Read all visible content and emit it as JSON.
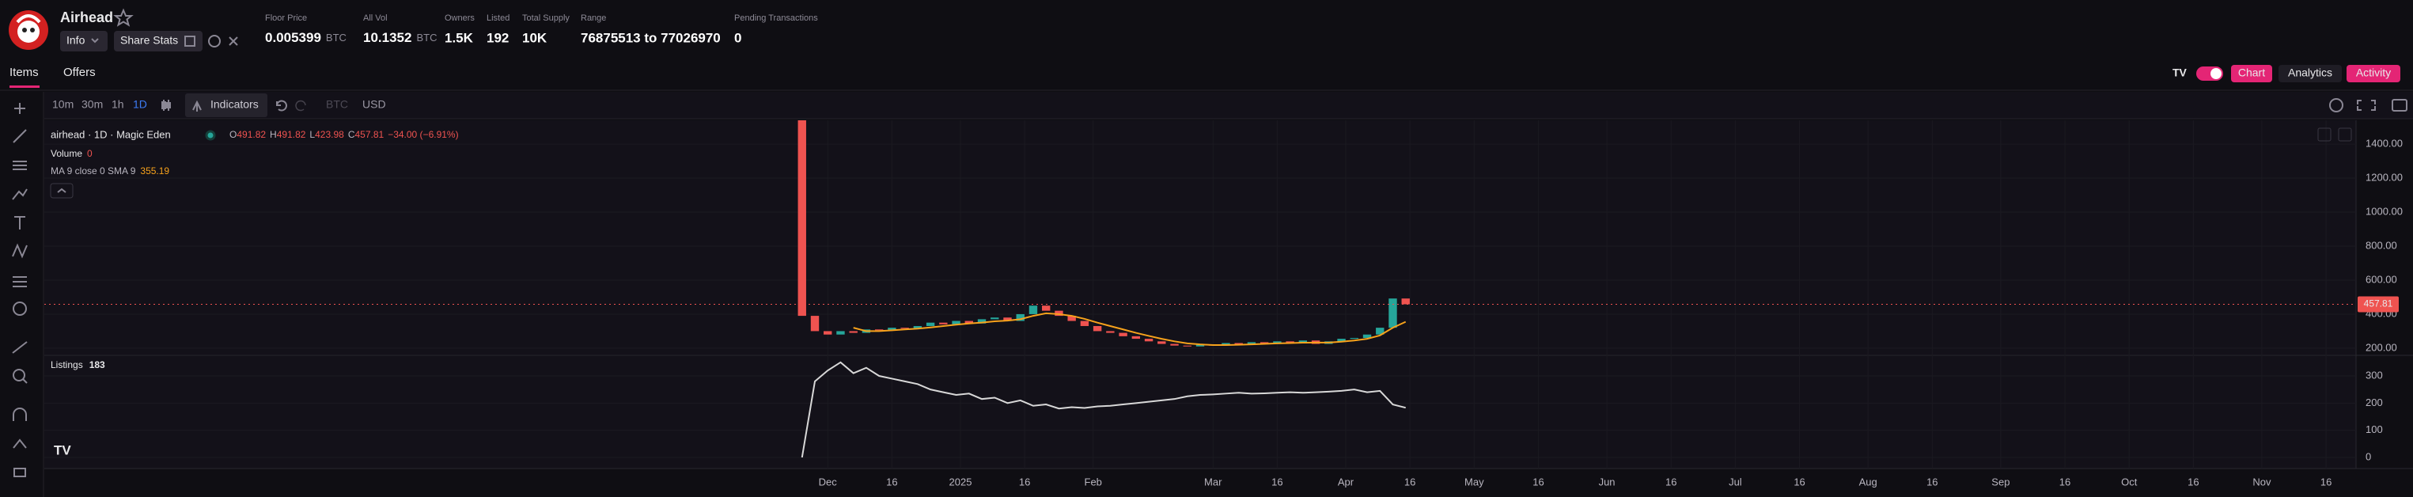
{
  "header": {
    "name": "Airhead",
    "info_button": "Info",
    "share_button": "Share Stats",
    "stats": [
      {
        "label": "Floor Price",
        "value": "0.005399",
        "unit": "BTC"
      },
      {
        "label": "All Vol",
        "value": "10.1352",
        "unit": "BTC"
      },
      {
        "label": "Owners",
        "value": "1.5K"
      },
      {
        "label": "Listed",
        "value": "192"
      },
      {
        "label": "Total Supply",
        "value": "10K"
      },
      {
        "label": "Range",
        "value": "76875513 to 77026970"
      },
      {
        "label": "Pending Transactions",
        "value": "0"
      }
    ]
  },
  "tabs": [
    "Items",
    "Offers"
  ],
  "view_buttons": [
    "Chart",
    "Analytics",
    "Activity"
  ],
  "toolbar": {
    "intervals": [
      "10m",
      "30m",
      "1h",
      "1D"
    ],
    "indicators": "Indicators",
    "currencies": [
      "BTC",
      "USD"
    ]
  },
  "chart": {
    "title": "airhead · 1D · Magic Eden",
    "ohlc": [
      {
        "key": "O",
        "value": "491.82"
      },
      {
        "key": "H",
        "value": "491.82"
      },
      {
        "key": "L",
        "value": "423.98"
      },
      {
        "key": "C",
        "value": "457.81"
      }
    ],
    "change": "−34.00 (−6.91%)",
    "volume": {
      "label": "Volume",
      "value": "0"
    },
    "ma": {
      "label": "MA 9 close 0 SMA 9",
      "value": "355.19"
    },
    "x": [
      -6,
      -3,
      0,
      3,
      6,
      9,
      12,
      15,
      18,
      21,
      24,
      27,
      30,
      33,
      36,
      39,
      42,
      45,
      48,
      51,
      54,
      57,
      60,
      63,
      66,
      69,
      72,
      75,
      78,
      81,
      84,
      87,
      90,
      93,
      96,
      99,
      102,
      105,
      108,
      111,
      114,
      117,
      120,
      123,
      126,
      129,
      132,
      135
    ],
    "xlim": [
      -183,
      357
    ],
    "xticks": [
      {
        "value": 0,
        "label": "Dec"
      },
      {
        "value": 15,
        "label": "16"
      },
      {
        "value": 31,
        "label": "2025"
      },
      {
        "value": 46,
        "label": "16"
      },
      {
        "value": 62,
        "label": "Feb"
      },
      {
        "value": 90,
        "label": "Mar"
      },
      {
        "value": 105,
        "label": "16"
      },
      {
        "value": 121,
        "label": "Apr"
      },
      {
        "value": 136,
        "label": "16"
      },
      {
        "value": 151,
        "label": "May"
      },
      {
        "value": 166,
        "label": "16"
      },
      {
        "value": 182,
        "label": "Jun"
      },
      {
        "value": 197,
        "label": "16"
      },
      {
        "value": 212,
        "label": "Jul"
      },
      {
        "value": 227,
        "label": "16"
      },
      {
        "value": 243,
        "label": "Aug"
      },
      {
        "value": 258,
        "label": "16"
      },
      {
        "value": 274,
        "label": "Sep"
      },
      {
        "value": 289,
        "label": "16"
      },
      {
        "value": 304,
        "label": "Oct"
      },
      {
        "value": 319,
        "label": "16"
      },
      {
        "value": 335,
        "label": "Nov"
      },
      {
        "value": 350,
        "label": "16"
      }
    ],
    "price": {
      "ylim": [
        167,
        1540
      ],
      "yticks": [
        {
          "value": 200,
          "label": "200.00"
        },
        {
          "value": 400,
          "label": "400.00"
        },
        {
          "value": 600,
          "label": "600.00"
        },
        {
          "value": 800,
          "label": "800.00"
        },
        {
          "value": 1000,
          "label": "1000.00"
        },
        {
          "value": 1200,
          "label": "1200.00"
        },
        {
          "value": 1400,
          "label": "1400.00"
        }
      ],
      "up_color": "#26a69a",
      "down_color": "#ef5350",
      "ma_color": "#f7a21b",
      "open": [
        1540,
        390,
        300,
        280,
        300,
        290,
        310,
        305,
        320,
        315,
        330,
        350,
        340,
        360,
        345,
        370,
        380,
        360,
        400,
        450,
        420,
        390,
        360,
        330,
        300,
        290,
        270,
        255,
        240,
        225,
        215,
        210,
        220,
        215,
        230,
        220,
        235,
        225,
        240,
        230,
        245,
        225,
        240,
        255,
        260,
        280,
        320,
        492
      ],
      "close": [
        390,
        300,
        280,
        300,
        290,
        310,
        305,
        320,
        315,
        330,
        350,
        340,
        360,
        345,
        370,
        380,
        360,
        400,
        450,
        420,
        390,
        360,
        330,
        300,
        290,
        270,
        255,
        240,
        225,
        215,
        210,
        220,
        215,
        230,
        220,
        235,
        225,
        240,
        230,
        245,
        225,
        240,
        255,
        260,
        280,
        320,
        492,
        458
      ],
      "ma_values": [
        null,
        null,
        null,
        null,
        320,
        300,
        300,
        305,
        310,
        315,
        322,
        330,
        338,
        345,
        350,
        358,
        362,
        370,
        390,
        405,
        400,
        390,
        372,
        350,
        330,
        310,
        290,
        272,
        255,
        240,
        228,
        222,
        218,
        218,
        220,
        222,
        225,
        228,
        230,
        232,
        233,
        233,
        238,
        245,
        255,
        275,
        320,
        355
      ],
      "last": 457.81
    },
    "listings": {
      "name": "Listings",
      "current": "183",
      "color": "#d8d8d8",
      "ylim": [
        -35,
        367
      ],
      "yticks": [
        0,
        100,
        200,
        300
      ],
      "values": [
        0,
        280,
        320,
        350,
        310,
        330,
        300,
        290,
        280,
        270,
        250,
        240,
        230,
        235,
        215,
        220,
        200,
        210,
        190,
        195,
        180,
        185,
        182,
        188,
        190,
        195,
        200,
        205,
        210,
        215,
        225,
        230,
        232,
        235,
        238,
        235,
        236,
        238,
        240,
        238,
        240,
        242,
        245,
        250,
        240,
        245,
        195,
        183
      ]
    }
  }
}
